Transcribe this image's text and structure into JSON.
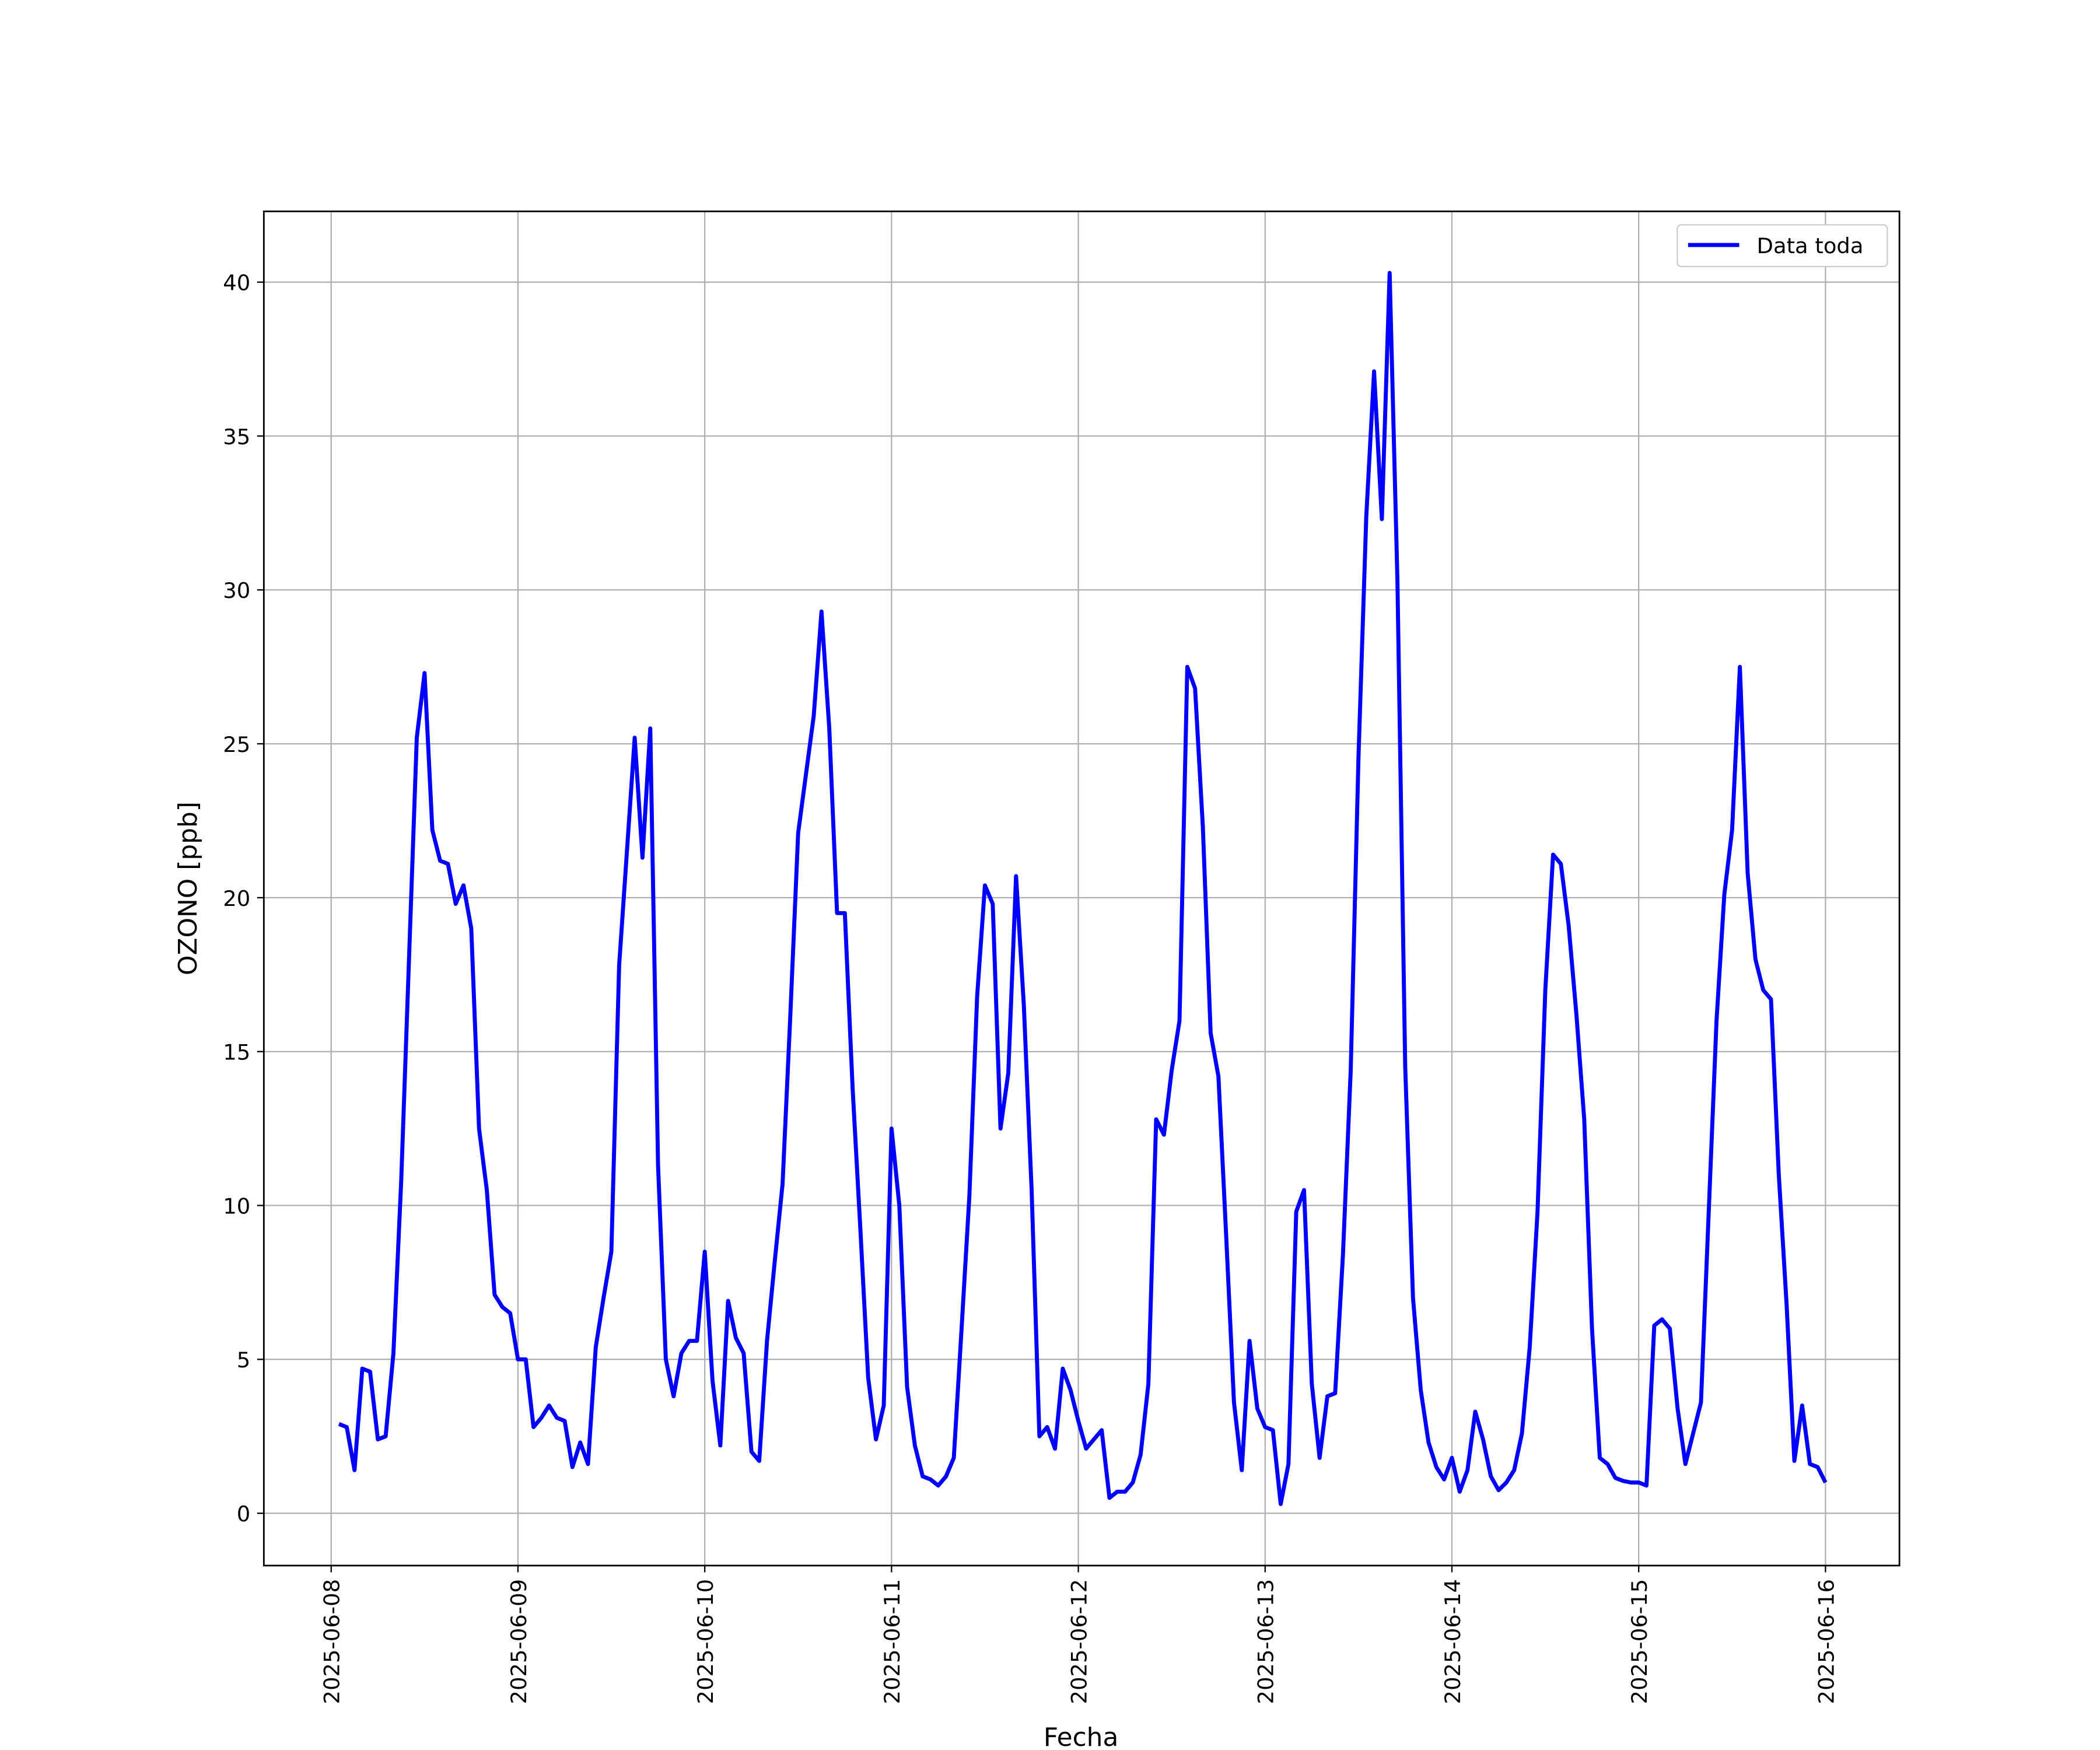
{
  "chart_data": {
    "type": "line",
    "xlabel": "Fecha",
    "ylabel": "OZONO [ppb]",
    "x": [
      "2025-06-08 01:00",
      "2025-06-08 02:00",
      "2025-06-08 03:00",
      "2025-06-08 04:00",
      "2025-06-08 05:00",
      "2025-06-08 06:00",
      "2025-06-08 07:00",
      "2025-06-08 08:00",
      "2025-06-08 09:00",
      "2025-06-08 10:00",
      "2025-06-08 11:00",
      "2025-06-08 12:00",
      "2025-06-08 13:00",
      "2025-06-08 14:00",
      "2025-06-08 15:00",
      "2025-06-08 16:00",
      "2025-06-08 17:00",
      "2025-06-08 18:00",
      "2025-06-08 19:00",
      "2025-06-08 20:00",
      "2025-06-08 21:00",
      "2025-06-08 22:00",
      "2025-06-08 23:00",
      "2025-06-09 00:00",
      "2025-06-09 01:00",
      "2025-06-09 02:00",
      "2025-06-09 03:00",
      "2025-06-09 04:00",
      "2025-06-09 05:00",
      "2025-06-09 06:00",
      "2025-06-09 07:00",
      "2025-06-09 08:00",
      "2025-06-09 09:00",
      "2025-06-09 10:00",
      "2025-06-09 11:00",
      "2025-06-09 12:00",
      "2025-06-09 13:00",
      "2025-06-09 14:00",
      "2025-06-09 15:00",
      "2025-06-09 16:00",
      "2025-06-09 17:00",
      "2025-06-09 18:00",
      "2025-06-09 19:00",
      "2025-06-09 20:00",
      "2025-06-09 21:00",
      "2025-06-09 22:00",
      "2025-06-09 23:00",
      "2025-06-10 00:00",
      "2025-06-10 01:00",
      "2025-06-10 02:00",
      "2025-06-10 03:00",
      "2025-06-10 04:00",
      "2025-06-10 05:00",
      "2025-06-10 06:00",
      "2025-06-10 07:00",
      "2025-06-10 08:00",
      "2025-06-10 09:00",
      "2025-06-10 10:00",
      "2025-06-10 11:00",
      "2025-06-10 12:00",
      "2025-06-10 13:00",
      "2025-06-10 14:00",
      "2025-06-10 15:00",
      "2025-06-10 16:00",
      "2025-06-10 17:00",
      "2025-06-10 18:00",
      "2025-06-10 19:00",
      "2025-06-10 20:00",
      "2025-06-10 21:00",
      "2025-06-10 22:00",
      "2025-06-10 23:00",
      "2025-06-11 00:00",
      "2025-06-11 01:00",
      "2025-06-11 02:00",
      "2025-06-11 03:00",
      "2025-06-11 04:00",
      "2025-06-11 05:00",
      "2025-06-11 06:00",
      "2025-06-11 07:00",
      "2025-06-11 08:00",
      "2025-06-11 09:00",
      "2025-06-11 10:00",
      "2025-06-11 11:00",
      "2025-06-11 12:00",
      "2025-06-11 13:00",
      "2025-06-11 14:00",
      "2025-06-11 15:00",
      "2025-06-11 16:00",
      "2025-06-11 17:00",
      "2025-06-11 18:00",
      "2025-06-11 19:00",
      "2025-06-11 20:00",
      "2025-06-11 21:00",
      "2025-06-11 22:00",
      "2025-06-11 23:00",
      "2025-06-12 00:00",
      "2025-06-12 01:00",
      "2025-06-12 02:00",
      "2025-06-12 03:00",
      "2025-06-12 04:00",
      "2025-06-12 05:00",
      "2025-06-12 06:00",
      "2025-06-12 07:00",
      "2025-06-12 08:00",
      "2025-06-12 09:00",
      "2025-06-12 10:00",
      "2025-06-12 11:00",
      "2025-06-12 12:00",
      "2025-06-12 13:00",
      "2025-06-12 14:00",
      "2025-06-12 15:00",
      "2025-06-12 16:00",
      "2025-06-12 17:00",
      "2025-06-12 18:00",
      "2025-06-12 19:00",
      "2025-06-12 20:00",
      "2025-06-12 21:00",
      "2025-06-12 22:00",
      "2025-06-12 23:00",
      "2025-06-13 00:00",
      "2025-06-13 01:00",
      "2025-06-13 02:00",
      "2025-06-13 03:00",
      "2025-06-13 04:00",
      "2025-06-13 05:00",
      "2025-06-13 06:00",
      "2025-06-13 07:00",
      "2025-06-13 08:00",
      "2025-06-13 09:00",
      "2025-06-13 10:00",
      "2025-06-13 11:00",
      "2025-06-13 12:00",
      "2025-06-13 13:00",
      "2025-06-13 14:00",
      "2025-06-13 15:00",
      "2025-06-13 16:00",
      "2025-06-13 17:00",
      "2025-06-13 18:00",
      "2025-06-13 19:00",
      "2025-06-13 20:00",
      "2025-06-13 21:00",
      "2025-06-13 22:00",
      "2025-06-13 23:00",
      "2025-06-14 00:00",
      "2025-06-14 01:00",
      "2025-06-14 02:00",
      "2025-06-14 03:00",
      "2025-06-14 04:00",
      "2025-06-14 05:00",
      "2025-06-14 06:00",
      "2025-06-14 07:00",
      "2025-06-14 08:00",
      "2025-06-14 09:00",
      "2025-06-14 10:00",
      "2025-06-14 11:00",
      "2025-06-14 12:00",
      "2025-06-14 13:00",
      "2025-06-14 14:00",
      "2025-06-14 15:00",
      "2025-06-14 16:00",
      "2025-06-14 17:00",
      "2025-06-14 18:00",
      "2025-06-14 19:00",
      "2025-06-14 20:00",
      "2025-06-14 21:00",
      "2025-06-14 22:00",
      "2025-06-14 23:00",
      "2025-06-15 00:00",
      "2025-06-15 01:00",
      "2025-06-15 02:00",
      "2025-06-15 03:00",
      "2025-06-15 04:00",
      "2025-06-15 05:00",
      "2025-06-15 06:00",
      "2025-06-15 07:00",
      "2025-06-15 08:00",
      "2025-06-15 09:00",
      "2025-06-15 10:00",
      "2025-06-15 11:00",
      "2025-06-15 12:00",
      "2025-06-15 13:00",
      "2025-06-15 14:00",
      "2025-06-15 15:00",
      "2025-06-15 16:00",
      "2025-06-15 17:00",
      "2025-06-15 18:00",
      "2025-06-15 19:00",
      "2025-06-15 20:00",
      "2025-06-15 21:00",
      "2025-06-15 22:00",
      "2025-06-15 23:00",
      "2025-06-16 00:00"
    ],
    "series": [
      {
        "name": "Data toda",
        "color": "#0000ff",
        "values": [
          2.9,
          2.8,
          1.4,
          4.7,
          4.6,
          2.4,
          2.5,
          5.2,
          10.8,
          18,
          25.2,
          27.3,
          22.2,
          21.2,
          21.1,
          19.8,
          20.4,
          19,
          12.5,
          10.5,
          7.1,
          6.7,
          6.5,
          5.0,
          5.0,
          2.8,
          3.1,
          3.5,
          3.1,
          3.0,
          1.5,
          2.3,
          1.6,
          5.4,
          7.0,
          8.5,
          17.8,
          21.5,
          25.2,
          21.3,
          25.5,
          11.3,
          5.0,
          3.8,
          5.2,
          5.6,
          5.6,
          8.5,
          4.3,
          2.2,
          6.9,
          5.7,
          5.2,
          2.0,
          1.7,
          5.6,
          8.2,
          10.7,
          16.2,
          22.1,
          24.0,
          25.9,
          29.3,
          25.5,
          19.5,
          19.5,
          13.8,
          9.2,
          4.4,
          2.4,
          3.5,
          12.5,
          10.0,
          4.1,
          2.2,
          1.2,
          1.1,
          0.9,
          1.2,
          1.8,
          6.0,
          10.3,
          16.8,
          20.4,
          19.8,
          12.5,
          14.3,
          20.7,
          16.5,
          10.5,
          2.5,
          2.8,
          2.1,
          4.7,
          4.0,
          3.0,
          2.1,
          2.4,
          2.7,
          0.5,
          0.7,
          0.7,
          1.0,
          1.9,
          4.2,
          12.8,
          12.3,
          14.4,
          16.0,
          27.5,
          26.8,
          22.3,
          15.6,
          14.2,
          9.0,
          3.6,
          1.4,
          5.6,
          3.4,
          2.8,
          2.7,
          0.3,
          1.6,
          9.8,
          10.5,
          4.2,
          1.8,
          3.8,
          3.9,
          8.4,
          14.4,
          24.6,
          32.4,
          37.1,
          32.3,
          40.3,
          30.3,
          14.5,
          7.0,
          4.0,
          2.3,
          1.5,
          1.1,
          1.8,
          0.7,
          1.4,
          3.3,
          2.4,
          1.2,
          0.75,
          1.0,
          1.4,
          2.6,
          5.4,
          9.8,
          17.0,
          21.4,
          21.1,
          19.1,
          16.2,
          12.8,
          6.0,
          1.8,
          1.6,
          1.15,
          1.05,
          1.0,
          1.0,
          0.9,
          6.1,
          6.3,
          6.0,
          3.4,
          1.6,
          2.6,
          3.6,
          9.8,
          16.0,
          20.1,
          22.2,
          27.5,
          20.8,
          18.0,
          17.0,
          16.7,
          11.0,
          6.8,
          1.7,
          3.5,
          1.6,
          1.5,
          1.0
        ]
      }
    ],
    "xlim": [
      "2025-06-07 15:21",
      "2025-06-16 09:30"
    ],
    "xticks": [
      "2025-06-08",
      "2025-06-09",
      "2025-06-10",
      "2025-06-11",
      "2025-06-12",
      "2025-06-13",
      "2025-06-14",
      "2025-06-15",
      "2025-06-16"
    ],
    "ylim": [
      -1.7,
      42.3
    ],
    "yticks": [
      0,
      5,
      10,
      15,
      20,
      25,
      30,
      35,
      40
    ],
    "grid": true,
    "legend": "upper right"
  }
}
